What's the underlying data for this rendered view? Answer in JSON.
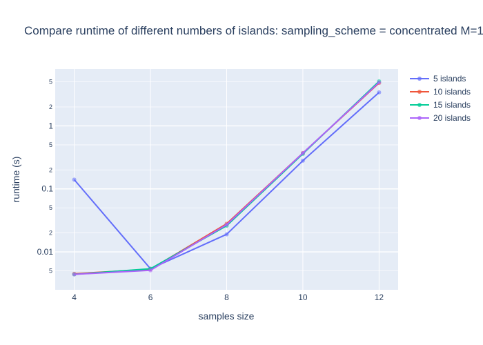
{
  "chart_data": {
    "type": "line",
    "title": "Compare runtime of different numbers of islands: sampling_scheme = concentrated M=1",
    "xlabel": "samples size",
    "ylabel": "runtime (s)",
    "x": [
      4,
      6,
      8,
      10,
      12
    ],
    "xlim": [
      3.5,
      12.5
    ],
    "x_ticks": [
      "4",
      "6",
      "8",
      "10",
      "12"
    ],
    "y_scale": "log",
    "ylim": [
      0.0025,
      8
    ],
    "y_major_ticks": [
      {
        "value": 0.01,
        "label": "0.01"
      },
      {
        "value": 0.1,
        "label": "0.1"
      },
      {
        "value": 1,
        "label": "1"
      }
    ],
    "y_minor_ticks": [
      {
        "value": 0.005,
        "label": "5"
      },
      {
        "value": 0.02,
        "label": "2"
      },
      {
        "value": 0.05,
        "label": "5"
      },
      {
        "value": 0.2,
        "label": "2"
      },
      {
        "value": 0.5,
        "label": "5"
      },
      {
        "value": 2,
        "label": "2"
      },
      {
        "value": 5,
        "label": "5"
      }
    ],
    "grid": true,
    "legend_position": "top-right",
    "series": [
      {
        "name": "5 islands",
        "color": "#636efa",
        "values": [
          0.14,
          0.0054,
          0.019,
          0.28,
          3.4
        ]
      },
      {
        "name": "10 islands",
        "color": "#ef553b",
        "values": [
          0.0045,
          0.0053,
          0.028,
          0.37,
          4.8
        ]
      },
      {
        "name": "15 islands",
        "color": "#00cc96",
        "values": [
          0.0044,
          0.0054,
          0.026,
          0.36,
          5.1
        ]
      },
      {
        "name": "20 islands",
        "color": "#ab63fa",
        "values": [
          0.0044,
          0.0051,
          0.027,
          0.37,
          4.9
        ]
      }
    ]
  }
}
